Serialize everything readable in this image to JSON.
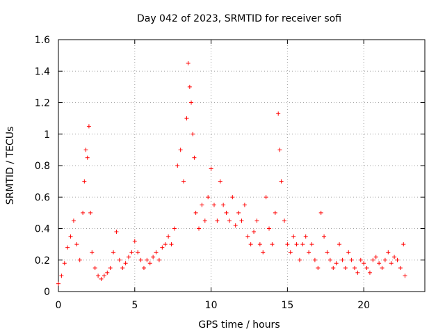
{
  "chart_data": {
    "type": "scatter",
    "title": "Day 042 of 2023, SRMTID for receiver sofi",
    "xlabel": "GPS time / hours",
    "ylabel": "SRMTID / TECUs",
    "xlim": [
      0,
      24
    ],
    "ylim": [
      0,
      1.6
    ],
    "xticks": [
      0,
      5,
      10,
      15,
      20
    ],
    "xtick_labels": [
      "0",
      "5",
      "10",
      "15",
      "20"
    ],
    "yticks": [
      0,
      0.2,
      0.4,
      0.6,
      0.8,
      1,
      1.2,
      1.4,
      1.6
    ],
    "ytick_labels": [
      "0",
      "0.2",
      "0.4",
      "0.6",
      "0.8",
      "1",
      "1.2",
      "1.4",
      "1.6"
    ],
    "grid": true,
    "marker": "+",
    "color": "#ff0000",
    "series": [
      {
        "name": "SRMTID",
        "x": [
          0.0,
          0.2,
          0.4,
          0.6,
          0.8,
          1.0,
          1.2,
          1.4,
          1.6,
          1.7,
          1.8,
          1.9,
          2.0,
          2.1,
          2.2,
          2.4,
          2.6,
          2.8,
          3.0,
          3.2,
          3.4,
          3.6,
          3.8,
          4.0,
          4.2,
          4.4,
          4.6,
          4.8,
          5.0,
          5.2,
          5.4,
          5.6,
          5.8,
          6.0,
          6.2,
          6.4,
          6.6,
          6.8,
          7.0,
          7.2,
          7.4,
          7.6,
          7.8,
          8.0,
          8.2,
          8.4,
          8.5,
          8.6,
          8.7,
          8.8,
          8.9,
          9.0,
          9.2,
          9.4,
          9.6,
          9.8,
          10.0,
          10.2,
          10.4,
          10.6,
          10.8,
          11.0,
          11.2,
          11.4,
          11.6,
          11.8,
          12.0,
          12.2,
          12.4,
          12.6,
          12.8,
          13.0,
          13.2,
          13.4,
          13.6,
          13.8,
          14.0,
          14.2,
          14.4,
          14.5,
          14.6,
          14.8,
          15.0,
          15.2,
          15.4,
          15.6,
          15.8,
          16.0,
          16.2,
          16.4,
          16.6,
          16.8,
          17.0,
          17.2,
          17.4,
          17.6,
          17.8,
          18.0,
          18.2,
          18.4,
          18.6,
          18.8,
          19.0,
          19.2,
          19.4,
          19.6,
          19.8,
          20.0,
          20.2,
          20.4,
          20.6,
          20.8,
          21.0,
          21.2,
          21.4,
          21.6,
          21.8,
          22.0,
          22.2,
          22.4,
          22.6,
          22.7
        ],
        "y": [
          0.05,
          0.1,
          0.18,
          0.28,
          0.35,
          0.45,
          0.3,
          0.2,
          0.5,
          0.7,
          0.9,
          0.85,
          1.05,
          0.5,
          0.25,
          0.15,
          0.1,
          0.08,
          0.1,
          0.12,
          0.15,
          0.25,
          0.38,
          0.2,
          0.15,
          0.18,
          0.22,
          0.25,
          0.32,
          0.25,
          0.2,
          0.15,
          0.2,
          0.18,
          0.22,
          0.25,
          0.2,
          0.28,
          0.3,
          0.35,
          0.3,
          0.4,
          0.8,
          0.9,
          0.7,
          1.1,
          1.45,
          1.3,
          1.2,
          1.0,
          0.85,
          0.5,
          0.4,
          0.55,
          0.45,
          0.6,
          0.78,
          0.55,
          0.45,
          0.7,
          0.55,
          0.5,
          0.45,
          0.6,
          0.42,
          0.5,
          0.45,
          0.55,
          0.35,
          0.3,
          0.38,
          0.45,
          0.3,
          0.25,
          0.6,
          0.4,
          0.3,
          0.5,
          1.13,
          0.9,
          0.7,
          0.45,
          0.3,
          0.25,
          0.35,
          0.3,
          0.2,
          0.3,
          0.35,
          0.25,
          0.3,
          0.2,
          0.15,
          0.5,
          0.35,
          0.25,
          0.2,
          0.15,
          0.18,
          0.3,
          0.2,
          0.15,
          0.25,
          0.2,
          0.15,
          0.12,
          0.2,
          0.18,
          0.15,
          0.12,
          0.2,
          0.22,
          0.18,
          0.15,
          0.2,
          0.25,
          0.18,
          0.22,
          0.2,
          0.15,
          0.3,
          0.1
        ]
      }
    ]
  }
}
